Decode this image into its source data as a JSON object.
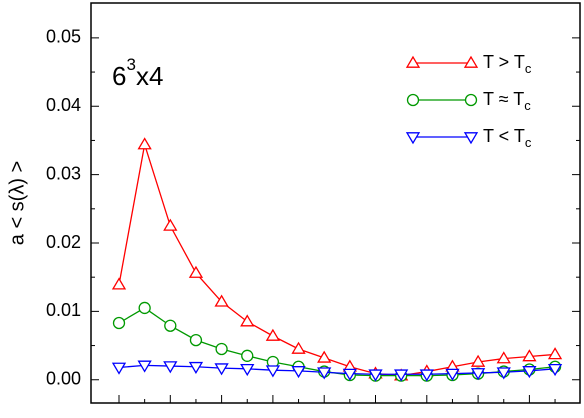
{
  "chart_data": {
    "type": "line",
    "annotation": [
      "6",
      "3",
      "x4"
    ],
    "y_label": "a < s(λ) >",
    "categories": [
      null,
      null,
      null,
      null,
      null,
      null,
      null,
      null,
      null,
      null,
      null,
      null,
      null,
      null,
      null,
      null,
      null,
      null
    ],
    "series": [
      {
        "name": "T > T",
        "subscript": "c",
        "color": "#ff0000",
        "marker": "triangle-up",
        "values": [
          0.0139,
          0.0344,
          0.0225,
          0.0156,
          0.0114,
          0.0085,
          0.0064,
          0.0045,
          0.0032,
          0.0019,
          0.0009,
          0.0006,
          0.0012,
          0.0019,
          0.0026,
          0.0031,
          0.0034,
          0.0037
        ]
      },
      {
        "name": "T ≈ T",
        "subscript": "c",
        "color": "#009900",
        "marker": "circle",
        "values": [
          0.0083,
          0.0105,
          0.0079,
          0.0058,
          0.0045,
          0.0035,
          0.0026,
          0.0019,
          0.0012,
          0.0007,
          0.0006,
          0.0006,
          0.0006,
          0.0007,
          0.0009,
          0.0012,
          0.0015,
          0.0019
        ]
      },
      {
        "name": "T < T",
        "subscript": "c",
        "color": "#0000ff",
        "marker": "triangle-down",
        "values": [
          0.0018,
          0.0021,
          0.002,
          0.0019,
          0.0017,
          0.0016,
          0.0014,
          0.0013,
          0.0011,
          0.0009,
          0.0008,
          0.0008,
          0.0008,
          0.0009,
          0.001,
          0.0011,
          0.0013,
          0.0016
        ]
      }
    ],
    "ylim": [
      -0.0034,
      0.0551
    ],
    "yticks": [
      {
        "value": 0,
        "label": "0.00"
      },
      {
        "value": 0.01,
        "label": "0.01"
      },
      {
        "value": 0.02,
        "label": "0.02"
      },
      {
        "value": 0.03,
        "label": "0.03"
      },
      {
        "value": 0.04,
        "label": "0.04"
      },
      {
        "value": 0.05,
        "label": "0.05"
      }
    ],
    "legend": "upper right"
  }
}
